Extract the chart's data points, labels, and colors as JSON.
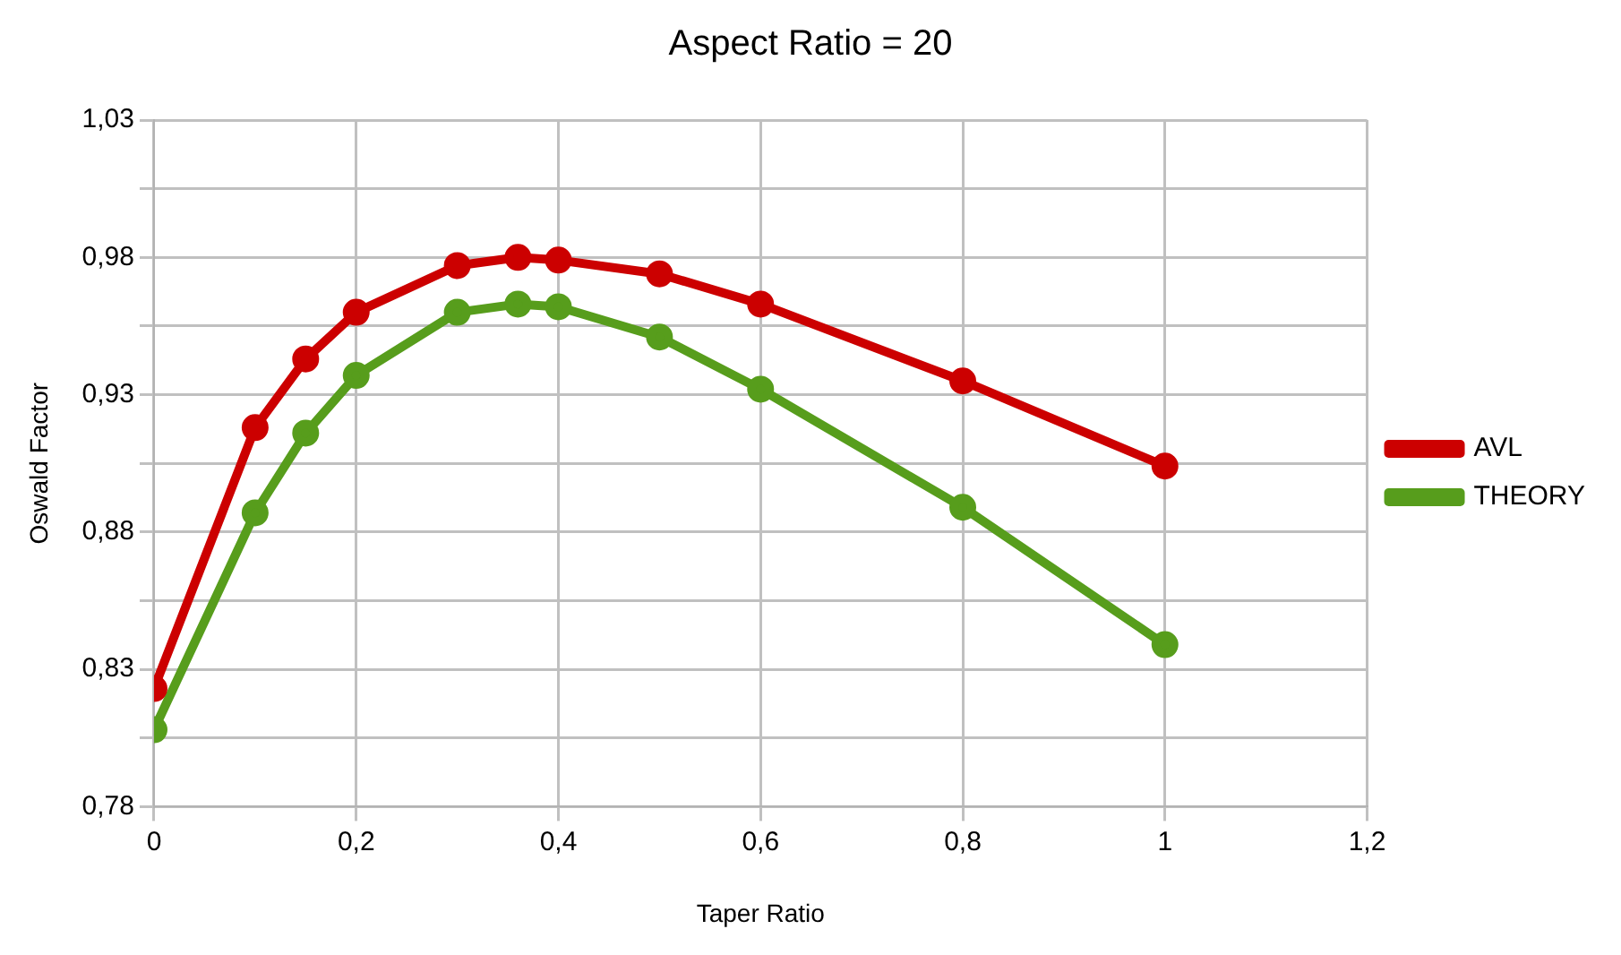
{
  "chart_data": {
    "type": "line",
    "title": "Aspect Ratio = 20",
    "xlabel": "Taper Ratio",
    "ylabel": "Oswald Factor",
    "x": [
      0,
      0.1,
      0.15,
      0.2,
      0.3,
      0.36,
      0.4,
      0.5,
      0.6,
      0.8,
      1
    ],
    "series": [
      {
        "name": "AVL",
        "color": "#cc0000",
        "values": [
          0.823,
          0.918,
          0.943,
          0.96,
          0.977,
          0.98,
          0.979,
          0.974,
          0.963,
          0.935,
          0.904
        ]
      },
      {
        "name": "THEORY",
        "color": "#579d1c",
        "values": [
          0.808,
          0.887,
          0.916,
          0.937,
          0.96,
          0.963,
          0.962,
          0.951,
          0.932,
          0.889,
          0.839
        ]
      }
    ],
    "xlim": [
      0,
      1.2
    ],
    "xticks": [
      {
        "value": 0,
        "label": "0"
      },
      {
        "value": 0.2,
        "label": "0,2"
      },
      {
        "value": 0.4,
        "label": "0,4"
      },
      {
        "value": 0.6,
        "label": "0,6"
      },
      {
        "value": 0.8,
        "label": "0,8"
      },
      {
        "value": 1,
        "label": "1"
      },
      {
        "value": 1.2,
        "label": "1,2"
      }
    ],
    "ylim": [
      0.78,
      1.03
    ],
    "yticks": [
      {
        "value": 0.78,
        "label": "0,78"
      },
      {
        "value": 0.805,
        "label": null
      },
      {
        "value": 0.83,
        "label": "0,83"
      },
      {
        "value": 0.855,
        "label": null
      },
      {
        "value": 0.88,
        "label": "0,88"
      },
      {
        "value": 0.905,
        "label": null
      },
      {
        "value": 0.93,
        "label": "0,93"
      },
      {
        "value": 0.955,
        "label": null
      },
      {
        "value": 0.98,
        "label": "0,98"
      },
      {
        "value": 1.005,
        "label": null
      },
      {
        "value": 1.03,
        "label": "1,03"
      }
    ],
    "grid": true,
    "legend": "right",
    "marker": "circle",
    "line_style": "solid"
  }
}
